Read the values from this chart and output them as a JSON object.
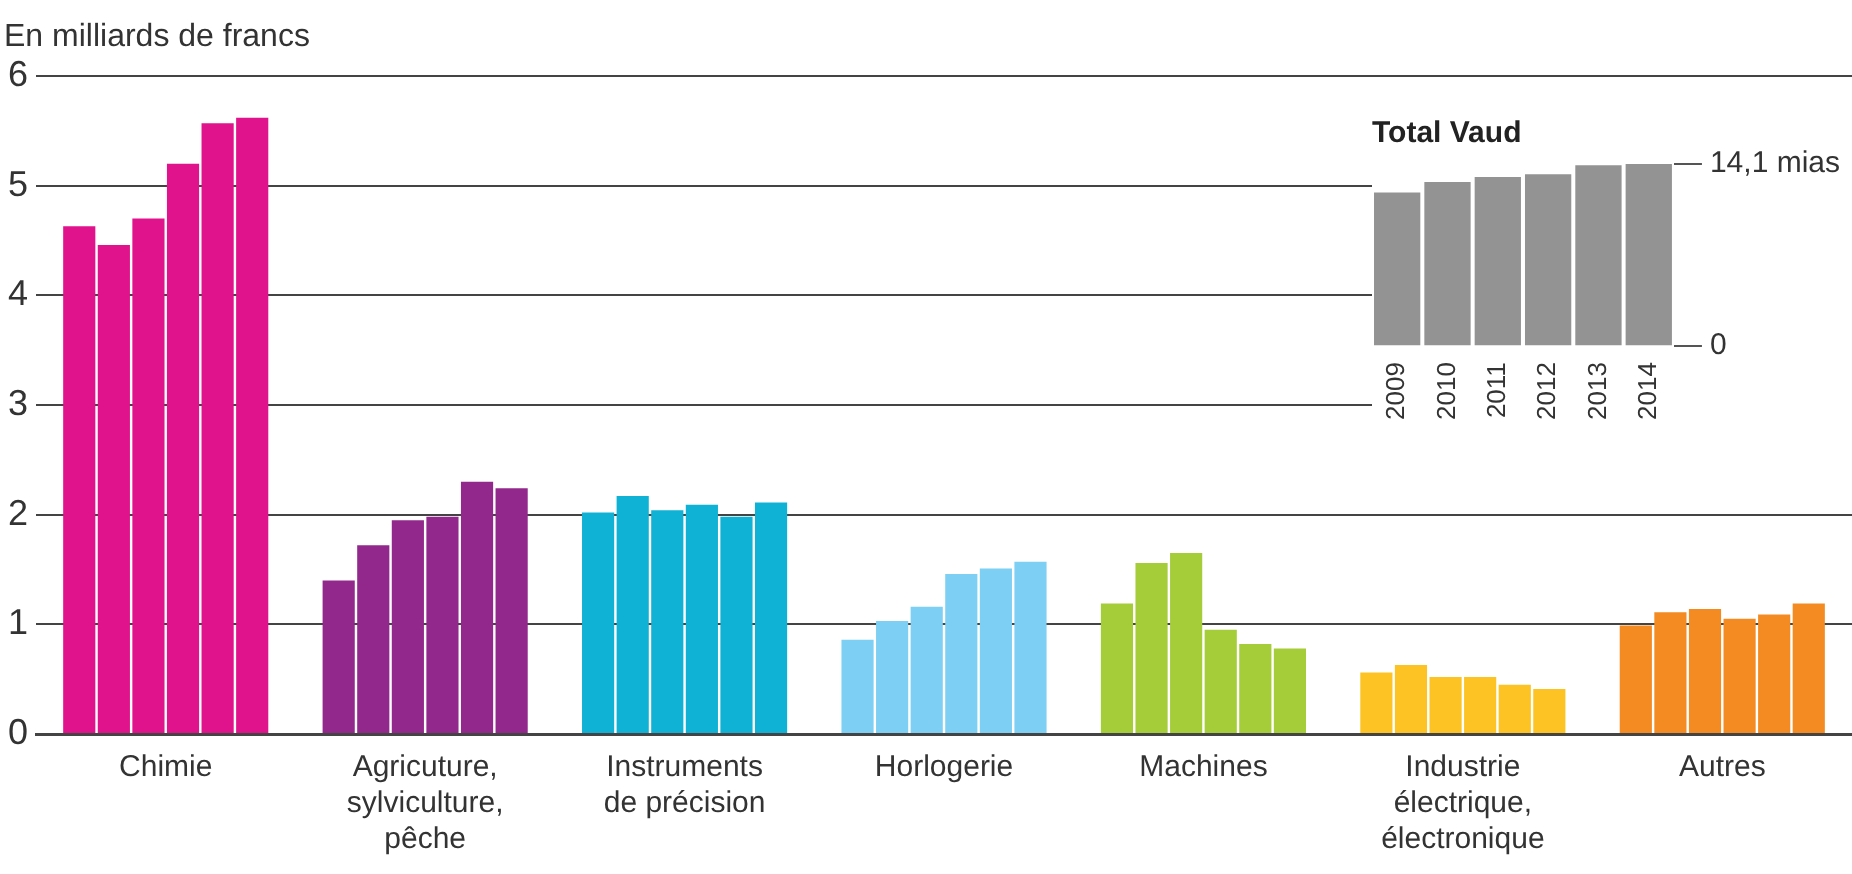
{
  "chart_data": [
    {
      "type": "bar",
      "ylabel": "En milliards de francs",
      "categories": [
        "Chimie",
        "Agricuture, sylviculture, pêche",
        "Instruments de précision",
        "Horlogerie",
        "Machines",
        "Industrie électrique, électronique",
        "Autres"
      ],
      "series": [
        {
          "colors": [
            "#e0138c",
            "#93288c",
            "#0fb2d5",
            "#7dd0f4",
            "#a5cd39",
            "#fdc325",
            "#f38b22"
          ],
          "values": [
            4.63,
            1.4,
            2.02,
            0.86,
            1.19,
            0.56,
            0.99
          ]
        },
        {
          "colors": [
            "#e0138c",
            "#93288c",
            "#0fb2d5",
            "#7dd0f4",
            "#a5cd39",
            "#fdc325",
            "#f38b22"
          ],
          "values": [
            4.46,
            1.72,
            2.17,
            1.03,
            1.56,
            0.63,
            1.11
          ]
        },
        {
          "colors": [
            "#e0138c",
            "#93288c",
            "#0fb2d5",
            "#7dd0f4",
            "#a5cd39",
            "#fdc325",
            "#f38b22"
          ],
          "values": [
            4.7,
            1.95,
            2.04,
            1.16,
            1.65,
            0.52,
            1.14
          ]
        },
        {
          "colors": [
            "#e0138c",
            "#93288c",
            "#0fb2d5",
            "#7dd0f4",
            "#a5cd39",
            "#fdc325",
            "#f38b22"
          ],
          "values": [
            5.2,
            1.98,
            2.09,
            1.46,
            0.95,
            0.52,
            1.05
          ]
        },
        {
          "colors": [
            "#e0138c",
            "#93288c",
            "#0fb2d5",
            "#7dd0f4",
            "#a5cd39",
            "#fdc325",
            "#f38b22"
          ],
          "values": [
            5.57,
            2.3,
            1.98,
            1.51,
            0.82,
            0.45,
            1.09
          ]
        },
        {
          "colors": [
            "#e0138c",
            "#93288c",
            "#0fb2d5",
            "#7dd0f4",
            "#a5cd39",
            "#fdc325",
            "#f38b22"
          ],
          "values": [
            5.62,
            2.24,
            2.11,
            1.57,
            0.78,
            0.41,
            1.19
          ]
        }
      ],
      "ylim": [
        0,
        6
      ],
      "yticks": [
        0,
        1,
        2,
        3,
        4,
        5,
        6
      ],
      "grid": "y"
    },
    {
      "type": "bar",
      "title": "Total Vaud",
      "categories": [
        "2009",
        "2010",
        "2011",
        "2012",
        "2013",
        "2014"
      ],
      "values": [
        11.9,
        12.7,
        13.1,
        13.3,
        14.0,
        14.1
      ],
      "color": "#939393",
      "ylim": [
        0,
        14.1
      ],
      "yticks": [
        0,
        {
          "value": 14.1,
          "label": "14,1 mias"
        }
      ]
    }
  ]
}
